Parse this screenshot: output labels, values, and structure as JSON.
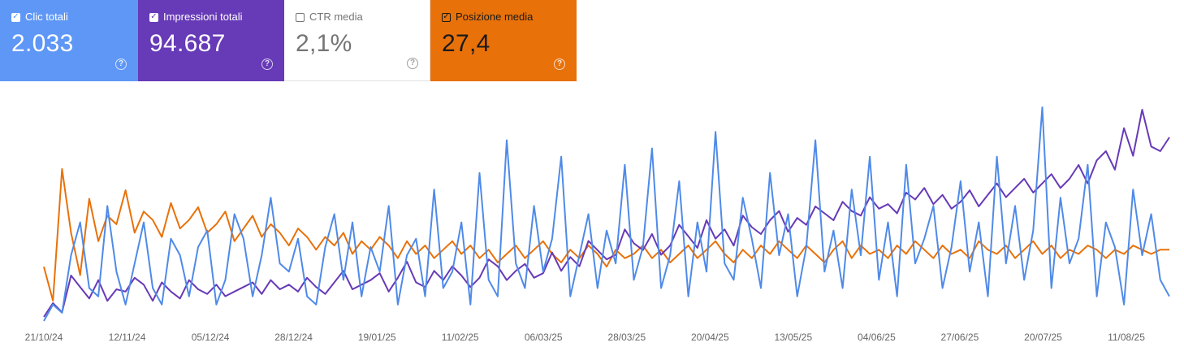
{
  "metrics": {
    "clicks": {
      "label": "Clic totali",
      "value": "2.033",
      "checked": true,
      "color": "#5e97f6"
    },
    "impressions": {
      "label": "Impressioni totali",
      "value": "94.687",
      "checked": true,
      "color": "#673ab7"
    },
    "ctr": {
      "label": "CTR media",
      "value": "2,1%",
      "checked": false,
      "color": "#757575"
    },
    "position": {
      "label": "Posizione media",
      "value": "27,4",
      "checked": true,
      "color": "#e8710a"
    }
  },
  "icons": {
    "checkbox": "checkbox-icon",
    "help": "help-circle-icon"
  },
  "chart_data": {
    "type": "line",
    "x_range": [
      "21/10/24",
      "24/08/25"
    ],
    "x_ticks": [
      "21/10/24",
      "12/11/24",
      "05/12/24",
      "28/12/24",
      "19/01/25",
      "11/02/25",
      "06/03/25",
      "28/03/25",
      "20/04/25",
      "13/05/25",
      "04/06/25",
      "27/06/25",
      "20/07/25",
      "11/08/25"
    ],
    "grid": false,
    "legend": "metric cards above chart",
    "series": [
      {
        "name": "Clic totali",
        "color": "#4f8ae8",
        "sample_every_days": 2,
        "values": [
          0,
          2,
          1,
          8,
          12,
          4,
          3,
          14,
          6,
          2,
          7,
          12,
          4,
          2,
          10,
          8,
          3,
          9,
          11,
          2,
          5,
          13,
          10,
          3,
          8,
          15,
          7,
          6,
          10,
          3,
          2,
          9,
          13,
          5,
          12,
          3,
          9,
          6,
          14,
          2,
          8,
          10,
          3,
          16,
          4,
          6,
          12,
          2,
          18,
          5,
          3,
          22,
          7,
          4,
          14,
          6,
          10,
          20,
          3,
          8,
          13,
          4,
          11,
          7,
          19,
          5,
          9,
          21,
          4,
          8,
          17,
          3,
          12,
          6,
          23,
          7,
          5,
          15,
          10,
          4,
          18,
          8,
          13,
          3,
          9,
          22,
          6,
          11,
          4,
          16,
          8,
          20,
          5,
          12,
          3,
          19,
          7,
          10,
          14,
          4,
          9,
          17,
          6,
          12,
          3,
          20,
          7,
          14,
          5,
          11,
          26,
          4,
          15,
          7,
          10,
          19,
          3,
          12,
          9,
          2,
          16,
          8,
          13,
          5,
          3
        ]
      },
      {
        "name": "Impressioni totali",
        "color": "#673ab7",
        "sample_every_days": 2,
        "values": [
          2,
          8,
          4,
          20,
          15,
          10,
          18,
          9,
          14,
          13,
          19,
          16,
          9,
          17,
          13,
          10,
          18,
          14,
          12,
          16,
          11,
          13,
          15,
          17,
          12,
          18,
          14,
          16,
          13,
          19,
          15,
          12,
          17,
          22,
          14,
          16,
          18,
          21,
          13,
          19,
          26,
          17,
          15,
          22,
          18,
          24,
          20,
          15,
          19,
          27,
          24,
          18,
          22,
          25,
          19,
          21,
          30,
          22,
          28,
          24,
          35,
          31,
          27,
          29,
          40,
          34,
          31,
          38,
          29,
          33,
          42,
          37,
          32,
          44,
          36,
          40,
          33,
          46,
          41,
          38,
          44,
          48,
          39,
          45,
          42,
          50,
          47,
          44,
          52,
          48,
          46,
          54,
          49,
          51,
          47,
          56,
          53,
          58,
          51,
          55,
          49,
          52,
          57,
          50,
          55,
          60,
          54,
          58,
          62,
          56,
          60,
          64,
          58,
          62,
          68,
          60,
          70,
          74,
          66,
          84,
          72,
          92,
          76,
          74,
          80
        ]
      },
      {
        "name": "Posizione media",
        "color": "#e8710a",
        "sample_every_days": 2,
        "values": [
          22,
          14,
          45,
          30,
          20,
          38,
          28,
          34,
          32,
          40,
          30,
          35,
          33,
          29,
          37,
          31,
          33,
          36,
          30,
          32,
          35,
          28,
          31,
          34,
          29,
          32,
          30,
          27,
          31,
          29,
          26,
          29,
          27,
          30,
          25,
          28,
          26,
          29,
          27,
          24,
          28,
          25,
          27,
          24,
          26,
          28,
          25,
          27,
          24,
          26,
          23,
          25,
          27,
          24,
          26,
          28,
          25,
          23,
          26,
          24,
          27,
          25,
          22,
          26,
          24,
          25,
          27,
          24,
          26,
          23,
          25,
          27,
          24,
          26,
          28,
          25,
          23,
          26,
          24,
          27,
          25,
          28,
          26,
          24,
          27,
          25,
          23,
          26,
          28,
          24,
          27,
          25,
          26,
          24,
          27,
          25,
          28,
          26,
          24,
          27,
          25,
          26,
          24,
          28,
          26,
          25,
          27,
          24,
          26,
          28,
          25,
          27,
          24,
          26,
          25,
          27,
          26,
          24,
          26,
          25,
          27,
          26,
          25,
          26,
          26
        ]
      }
    ]
  }
}
